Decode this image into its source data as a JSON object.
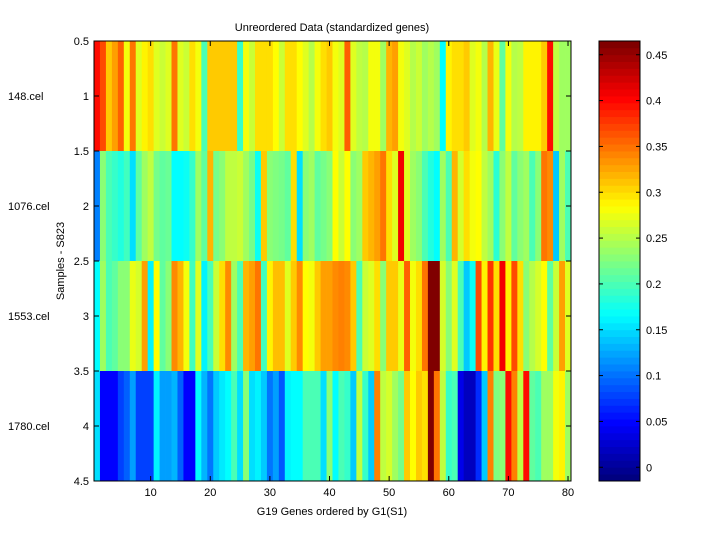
{
  "chart_data": {
    "type": "heatmap",
    "title": "Unreordered Data (standardized genes)",
    "xlabel": "G19 Genes ordered by G1(S1)",
    "ylabel": "Samples - S823",
    "xlim": [
      0.5,
      80.5
    ],
    "ylim": [
      0.5,
      4.5
    ],
    "x_ticks": [
      10,
      20,
      30,
      40,
      50,
      60,
      70,
      80
    ],
    "y_ticks": [
      0.5,
      1,
      1.5,
      2,
      2.5,
      3,
      3.5,
      4,
      4.5
    ],
    "row_labels": [
      "148.cel",
      "1076.cel",
      "1553.cel",
      "1780.cel"
    ],
    "colormap": "jet",
    "colorbar": {
      "range": [
        -0.015,
        0.465
      ],
      "ticks": [
        0,
        0.05,
        0.1,
        0.15,
        0.2,
        0.25,
        0.3,
        0.35,
        0.4,
        0.45
      ]
    },
    "values": [
      [
        0.4,
        0.37,
        0.31,
        0.33,
        0.36,
        0.28,
        0.35,
        0.27,
        0.29,
        0.3,
        0.27,
        0.26,
        0.27,
        0.35,
        0.27,
        0.26,
        0.3,
        0.28,
        0.2,
        0.31,
        0.31,
        0.31,
        0.31,
        0.31,
        0.19,
        0.28,
        0.26,
        0.3,
        0.3,
        0.3,
        0.285,
        0.26,
        0.3,
        0.3,
        0.285,
        0.27,
        0.25,
        0.28,
        0.3,
        0.31,
        0.28,
        0.27,
        0.36,
        0.27,
        0.255,
        0.25,
        0.28,
        0.28,
        0.24,
        0.32,
        0.33,
        0.28,
        0.27,
        0.25,
        0.26,
        0.24,
        0.25,
        0.24,
        0.165,
        0.29,
        0.3,
        0.3,
        0.31,
        0.27,
        0.28,
        0.25,
        0.32,
        0.275,
        0.21,
        0.28,
        0.25,
        0.255,
        0.29,
        0.29,
        0.29,
        0.31,
        0.4,
        0.255,
        0.24,
        0.24
      ],
      [
        0.105,
        0.23,
        0.2,
        0.19,
        0.18,
        0.195,
        0.15,
        0.21,
        0.24,
        0.255,
        0.22,
        0.21,
        0.215,
        0.165,
        0.165,
        0.17,
        0.19,
        0.24,
        0.21,
        0.32,
        0.22,
        0.23,
        0.255,
        0.255,
        0.26,
        0.24,
        0.22,
        0.17,
        0.31,
        0.23,
        0.225,
        0.22,
        0.21,
        0.3,
        0.15,
        0.23,
        0.24,
        0.21,
        0.22,
        0.23,
        0.285,
        0.26,
        0.285,
        0.23,
        0.24,
        0.31,
        0.32,
        0.33,
        0.35,
        0.3,
        0.27,
        0.41,
        0.27,
        0.24,
        0.23,
        0.2,
        0.18,
        0.165,
        0.24,
        0.2,
        0.32,
        0.265,
        0.3,
        0.28,
        0.285,
        0.255,
        0.24,
        0.185,
        0.23,
        0.255,
        0.21,
        0.23,
        0.24,
        0.2,
        0.23,
        0.35,
        0.34,
        0.14,
        0.24,
        0.2
      ],
      [
        0.165,
        0.24,
        0.2,
        0.21,
        0.23,
        0.23,
        0.275,
        0.265,
        0.33,
        0.16,
        0.285,
        0.21,
        0.23,
        0.34,
        0.32,
        0.28,
        0.195,
        0.27,
        0.16,
        0.2,
        0.26,
        0.3,
        0.34,
        0.24,
        0.2,
        0.32,
        0.33,
        0.35,
        0.195,
        0.29,
        0.315,
        0.315,
        0.27,
        0.31,
        0.34,
        0.285,
        0.28,
        0.31,
        0.33,
        0.33,
        0.34,
        0.345,
        0.34,
        0.31,
        0.2,
        0.26,
        0.27,
        0.3,
        0.23,
        0.31,
        0.31,
        0.275,
        0.36,
        0.28,
        0.3,
        0.35,
        0.465,
        0.465,
        0.265,
        0.23,
        0.27,
        0.2,
        0.14,
        0.17,
        0.37,
        0.29,
        0.38,
        0.3,
        0.41,
        0.29,
        0.37,
        0.3,
        0.23,
        0.25,
        0.265,
        0.285,
        0.21,
        0.26,
        0.33,
        0.27
      ],
      [
        0.15,
        0.045,
        0.045,
        0.045,
        0.075,
        0.09,
        0.12,
        0.075,
        0.075,
        0.075,
        0.16,
        0.12,
        0.12,
        0.13,
        0.09,
        0.045,
        0.045,
        0.165,
        0.13,
        0.1,
        0.14,
        0.155,
        0.165,
        0.2,
        0.15,
        0.23,
        0.15,
        0.16,
        0.14,
        0.1,
        0.12,
        0.085,
        0.16,
        0.165,
        0.165,
        0.2,
        0.2,
        0.2,
        0.15,
        0.23,
        0.165,
        0.2,
        0.19,
        0.14,
        0.255,
        0.19,
        0.14,
        0.345,
        0.255,
        0.265,
        0.24,
        0.22,
        0.31,
        0.285,
        0.31,
        0.3,
        0.465,
        0.35,
        0.255,
        0.19,
        0.2,
        0.035,
        0.015,
        0.015,
        0.065,
        0.14,
        0.345,
        0.225,
        0.23,
        0.4,
        0.345,
        0.255,
        0.4,
        0.21,
        0.2,
        0.24,
        0.24,
        0.28,
        0.29,
        0.24
      ]
    ]
  }
}
